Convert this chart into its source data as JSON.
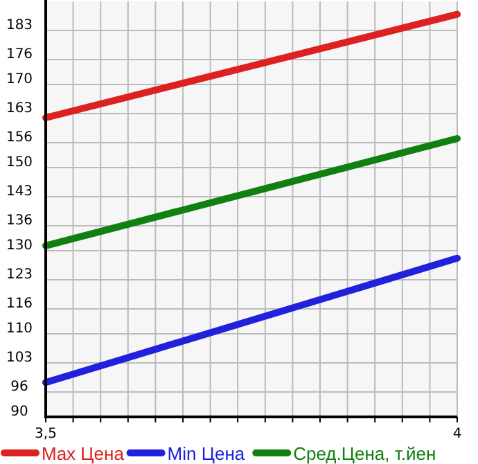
{
  "chart_data": {
    "type": "line",
    "x": [
      3.5,
      4
    ],
    "series": [
      {
        "name": "Max Цена",
        "color": "#dd2020",
        "values": [
          162,
          186.9
        ]
      },
      {
        "name": "Min Цена",
        "color": "#2020dd",
        "values": [
          98.3,
          128.2
        ]
      },
      {
        "name": "Сред.Цена, т.йен",
        "color": "#108010",
        "values": [
          131.2,
          157
        ]
      }
    ],
    "xlim": [
      3.5,
      4
    ],
    "xticks": [
      {
        "value": 3.5,
        "label": "3,5"
      },
      {
        "value": 3.5333,
        "label": null
      },
      {
        "value": 3.5667,
        "label": null
      },
      {
        "value": 3.6,
        "label": null
      },
      {
        "value": 3.6333,
        "label": null
      },
      {
        "value": 3.6667,
        "label": null
      },
      {
        "value": 3.7,
        "label": null
      },
      {
        "value": 3.7333,
        "label": null
      },
      {
        "value": 3.7667,
        "label": null
      },
      {
        "value": 3.8,
        "label": null
      },
      {
        "value": 3.8333,
        "label": null
      },
      {
        "value": 3.8667,
        "label": null
      },
      {
        "value": 3.9,
        "label": null
      },
      {
        "value": 3.9333,
        "label": null
      },
      {
        "value": 3.9667,
        "label": null
      },
      {
        "value": 4,
        "label": "4"
      }
    ],
    "ylim": [
      90,
      190
    ],
    "yticks": [
      90,
      96,
      103,
      110,
      116,
      123,
      130,
      136,
      143,
      150,
      156,
      163,
      170,
      176,
      183
    ],
    "grid": true,
    "legend": "bottom",
    "marker": "none",
    "line_style": "solid"
  }
}
